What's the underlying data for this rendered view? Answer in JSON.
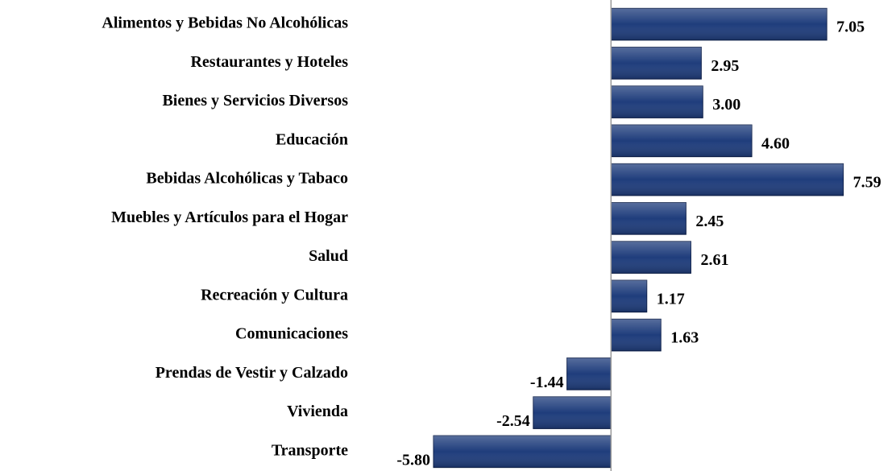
{
  "chart_data": {
    "type": "bar",
    "orientation": "horizontal",
    "categories": [
      "Alimentos y Bebidas No Alcohólicas",
      "Restaurantes y Hoteles",
      "Bienes y Servicios Diversos",
      "Educación",
      "Bebidas Alcohólicas y Tabaco",
      "Muebles y Artículos para el Hogar",
      "Salud",
      "Recreación y Cultura",
      "Comunicaciones",
      "Prendas de Vestir y Calzado",
      "Vivienda",
      "Transporte"
    ],
    "values": [
      7.05,
      2.95,
      3.0,
      4.6,
      7.59,
      2.45,
      2.61,
      1.17,
      1.63,
      -1.44,
      -2.54,
      -5.8
    ],
    "value_labels": [
      "7.05",
      "2.95",
      "3.00",
      "4.60",
      "7.59",
      "2.45",
      "2.61",
      "1.17",
      "1.63",
      "-1.44",
      "-2.54",
      "-5.80"
    ],
    "color": "#1f3d7c",
    "xlim": [
      -6.8,
      7.6
    ]
  }
}
